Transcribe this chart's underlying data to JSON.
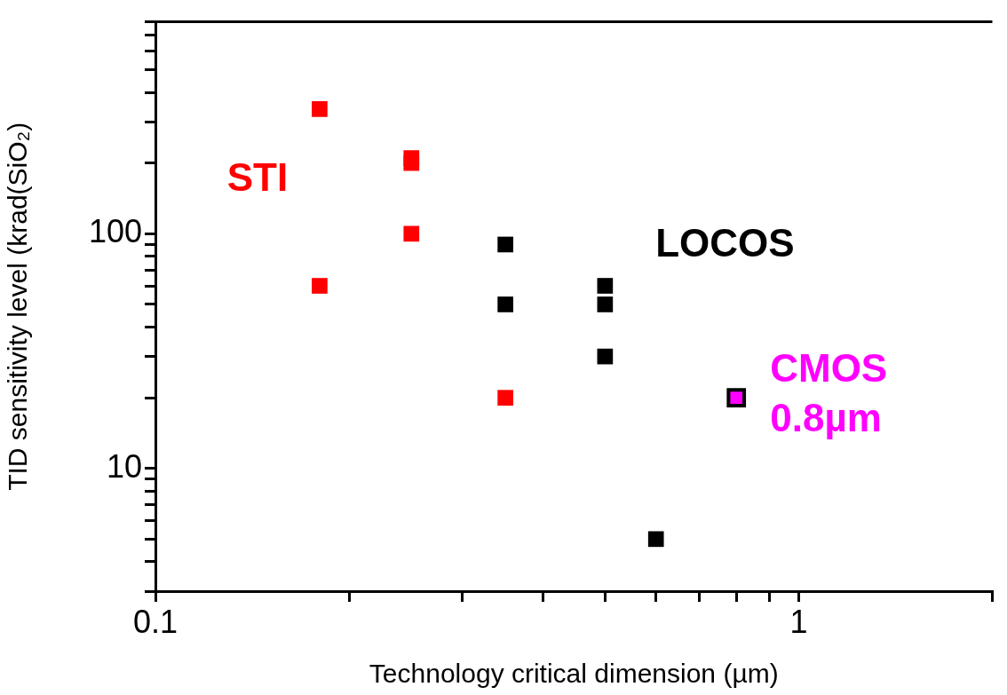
{
  "chart_data": {
    "type": "scatter",
    "xlabel": "Technology critical dimension (µm)",
    "ylabel": "TID sensitivity level (krad(SiO₂)",
    "log": "xy",
    "marker": "square",
    "grid": false,
    "legend": false,
    "xlim": [
      0.1,
      2
    ],
    "ylim": [
      3,
      800
    ],
    "xticks": [
      0.1,
      {
        "value": 0.2,
        "label": null
      },
      {
        "value": 0.3,
        "label": null
      },
      {
        "value": 0.4,
        "label": null
      },
      {
        "value": 0.5,
        "label": null
      },
      {
        "value": 0.6,
        "label": null
      },
      {
        "value": 0.7,
        "label": null
      },
      {
        "value": 0.8,
        "label": null
      },
      {
        "value": 0.9,
        "label": null
      },
      1,
      {
        "value": 2,
        "label": null
      }
    ],
    "yticks": [
      {
        "value": 3,
        "label": null
      },
      {
        "value": 4,
        "label": null
      },
      {
        "value": 5,
        "label": null
      },
      {
        "value": 6,
        "label": null
      },
      {
        "value": 7,
        "label": null
      },
      {
        "value": 8,
        "label": null
      },
      {
        "value": 9,
        "label": null
      },
      10,
      {
        "value": 20,
        "label": null
      },
      {
        "value": 30,
        "label": null
      },
      {
        "value": 40,
        "label": null
      },
      {
        "value": 50,
        "label": null
      },
      {
        "value": 60,
        "label": null
      },
      {
        "value": 70,
        "label": null
      },
      {
        "value": 80,
        "label": null
      },
      {
        "value": 90,
        "label": null
      },
      100,
      {
        "value": 200,
        "label": null
      },
      {
        "value": 300,
        "label": null
      },
      {
        "value": 400,
        "label": null
      },
      {
        "value": 500,
        "label": null
      },
      {
        "value": 600,
        "label": null
      },
      {
        "value": 700,
        "label": null
      },
      {
        "value": 800,
        "label": null
      }
    ],
    "series": [
      {
        "name": "STI",
        "color": "#ff0000",
        "x": [
          0.18,
          0.18,
          0.25,
          0.25,
          0.25,
          0.35
        ],
        "values": [
          340,
          60,
          210,
          200,
          100,
          20
        ]
      },
      {
        "name": "LOCOS",
        "color": "#000000",
        "x": [
          0.35,
          0.35,
          0.5,
          0.5,
          0.5,
          0.6
        ],
        "values": [
          90,
          50,
          60,
          50,
          30,
          5
        ]
      },
      {
        "name": "CMOS 0.8µm",
        "color": "#ff00ff",
        "x": [
          0.8
        ],
        "values": [
          20
        ]
      }
    ]
  }
}
